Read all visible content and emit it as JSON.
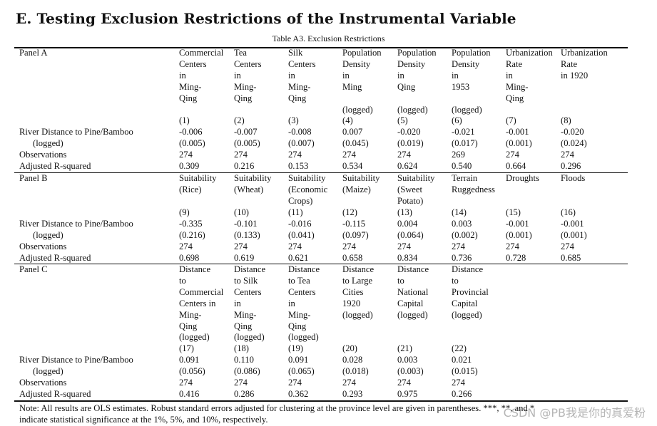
{
  "heading": "E. Testing Exclusion Restrictions of the Instrumental Variable",
  "caption": "Table A3. Exclusion Restrictions",
  "panels": [
    {
      "name": "Panel A",
      "columns": [
        {
          "header": "Commercial\nCenters\nin\nMing-\nQing",
          "num": "(1)",
          "coef": "-0.006",
          "se": "(0.005)",
          "obs": "274",
          "r2": "0.309"
        },
        {
          "header": "Tea\nCenters\nin\nMing-\nQing",
          "num": "(2)",
          "coef": "-0.007",
          "se": "(0.005)",
          "obs": "274",
          "r2": "0.216"
        },
        {
          "header": "Silk\nCenters\nin\nMing-\nQing",
          "num": "(3)",
          "coef": "-0.008",
          "se": "(0.007)",
          "obs": "274",
          "r2": "0.153"
        },
        {
          "header": "Population\nDensity\nin\nMing\n\n(logged)",
          "num": "(4)",
          "coef": "0.007",
          "se": "(0.045)",
          "obs": "274",
          "r2": "0.534"
        },
        {
          "header": "Population\nDensity\nin\nQing\n\n(logged)",
          "num": "(5)",
          "coef": "-0.020",
          "se": "(0.019)",
          "obs": "274",
          "r2": "0.624"
        },
        {
          "header": "Population\nDensity\nin\n1953\n\n(logged)",
          "num": "(6)",
          "coef": "-0.021",
          "se": "(0.017)",
          "obs": "269",
          "r2": "0.540"
        },
        {
          "header": "Urbanization\nRate\nin\nMing-\nQing",
          "num": "(7)",
          "coef": "-0.001",
          "se": "(0.001)",
          "obs": "274",
          "r2": "0.664"
        },
        {
          "header": "Urbanization\nRate\nin 1920",
          "num": "(8)",
          "coef": "-0.020",
          "se": "(0.024)",
          "obs": "274",
          "r2": "0.296"
        }
      ]
    },
    {
      "name": "Panel B",
      "columns": [
        {
          "header": "Suitability\n(Rice)",
          "num": "(9)",
          "coef": "-0.335",
          "se": "(0.216)",
          "obs": "274",
          "r2": "0.698"
        },
        {
          "header": "Suitability\n(Wheat)",
          "num": "(10)",
          "coef": "-0.101",
          "se": "(0.133)",
          "obs": "274",
          "r2": "0.619"
        },
        {
          "header": "Suitability\n(Economic\nCrops)",
          "num": "(11)",
          "coef": "-0.016",
          "se": "(0.041)",
          "obs": "274",
          "r2": "0.621"
        },
        {
          "header": "Suitability\n(Maize)",
          "num": "(12)",
          "coef": "-0.115",
          "se": "(0.097)",
          "obs": "274",
          "r2": "0.658"
        },
        {
          "header": "Suitability\n(Sweet\nPotato)",
          "num": "(13)",
          "coef": "0.004",
          "se": "(0.064)",
          "obs": "274",
          "r2": "0.834"
        },
        {
          "header": "Terrain\nRuggedness",
          "num": "(14)",
          "coef": "0.003",
          "se": "(0.002)",
          "obs": "274",
          "r2": "0.736"
        },
        {
          "header": "Droughts",
          "num": "(15)",
          "coef": "-0.001",
          "se": "(0.001)",
          "obs": "274",
          "r2": "0.728"
        },
        {
          "header": "Floods",
          "num": "(16)",
          "coef": "-0.001",
          "se": "(0.001)",
          "obs": "274",
          "r2": "0.685"
        }
      ]
    },
    {
      "name": "Panel C",
      "columns": [
        {
          "header": "Distance\nto\nCommercial\nCenters in\nMing-\nQing\n(logged)",
          "num": "(17)",
          "coef": "0.091",
          "se": "(0.056)",
          "obs": "274",
          "r2": "0.416"
        },
        {
          "header": "Distance\nto Silk\nCenters\nin\nMing-\nQing\n(logged)",
          "num": "(18)",
          "coef": "0.110",
          "se": "(0.086)",
          "obs": "274",
          "r2": "0.286"
        },
        {
          "header": "Distance\nto Tea\nCenters\nin\nMing-\nQing\n(logged)",
          "num": "(19)",
          "coef": "0.091",
          "se": "(0.065)",
          "obs": "274",
          "r2": "0.362"
        },
        {
          "header": "Distance\nto Large\nCities\n1920\n(logged)",
          "num": "(20)",
          "coef": "0.028",
          "se": "(0.018)",
          "obs": "274",
          "r2": "0.293"
        },
        {
          "header": "Distance\nto\nNational\nCapital\n(logged)",
          "num": "(21)",
          "coef": "0.003",
          "se": "(0.003)",
          "obs": "274",
          "r2": "0.975"
        },
        {
          "header": "Distance\nto\nProvincial\nCapital\n(logged)",
          "num": "(22)",
          "coef": "0.021",
          "se": "(0.015)",
          "obs": "274",
          "r2": "0.266"
        }
      ]
    }
  ],
  "row_labels": {
    "coef": "River Distance to Pine/Bamboo",
    "se": "(logged)",
    "obs": "Observations",
    "r2": "Adjusted R-squared"
  },
  "note_line1": "Note:  All results are OLS estimates.  Robust standard errors adjusted for clustering at the province level are given in parentheses. ***, **, and *",
  "note_line2": "indicate statistical significance at the 1%, 5%, and 10%, respectively.",
  "watermark": "CSDN @PB我是你的真爱粉"
}
